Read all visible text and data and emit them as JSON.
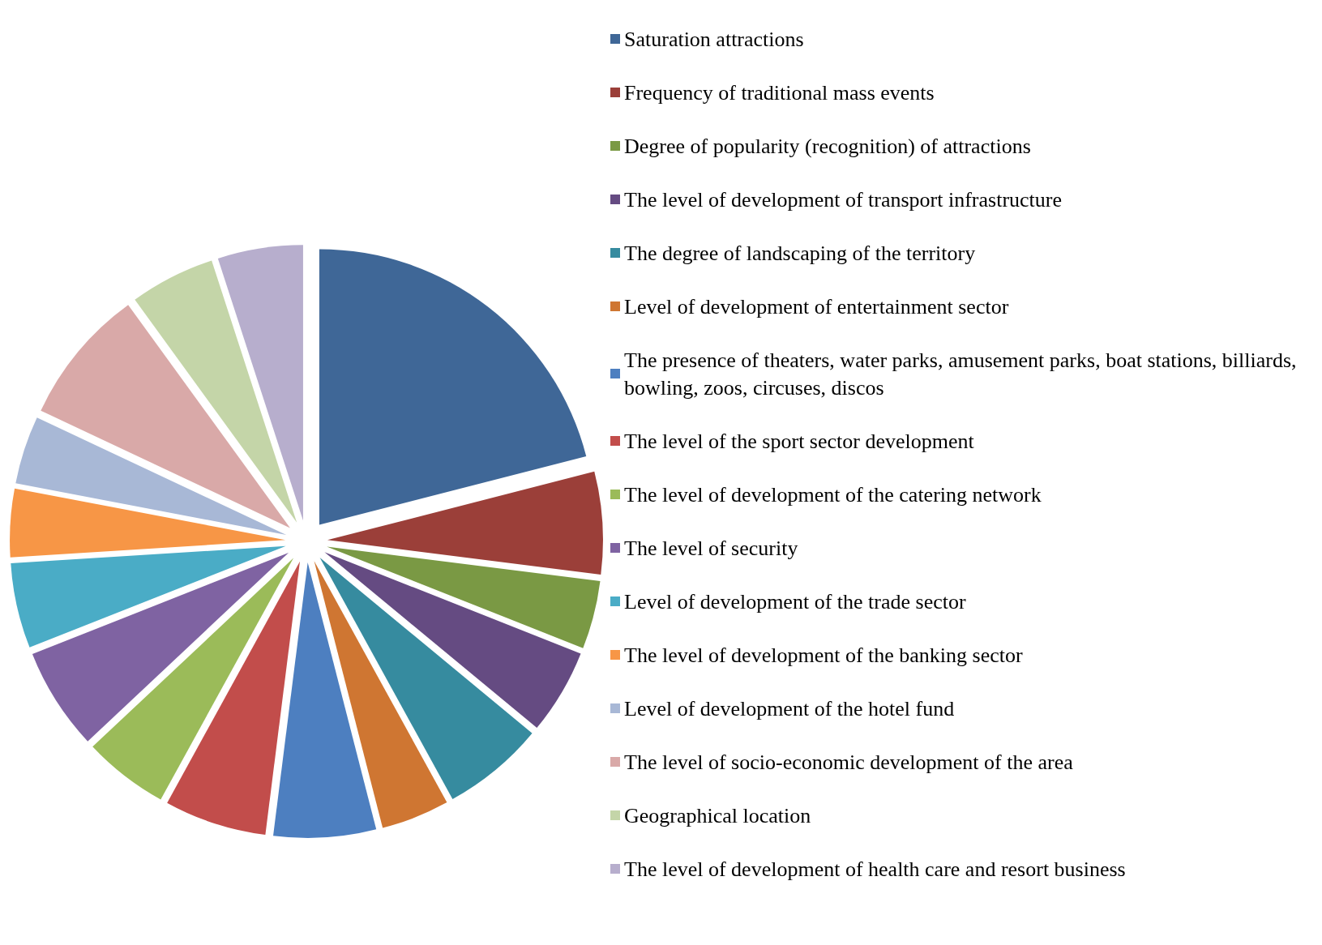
{
  "chart_data": {
    "type": "pie",
    "categories": [
      "Saturation attractions",
      "Frequency of traditional mass events",
      "Degree of popularity (recognition) of attractions",
      "The level of development of transport infrastructure",
      "The degree of landscaping of the territory",
      "Level of development of entertainment sector",
      "The presence of theaters, water parks, amusement parks, boat stations, billiards, bowling, zoos, circuses, discos",
      "The level of the sport sector development",
      "The level of development of the catering network",
      "The level of security",
      "Level of development of the trade sector",
      "The level of development of the banking sector",
      "Level of development of the hotel fund",
      "The level of socio-economic development of the area",
      "Geographical location",
      "The level of development of health care and resort business"
    ],
    "values": [
      21,
      6,
      4,
      5,
      6,
      4,
      6,
      6,
      5,
      6,
      5,
      4,
      4,
      8,
      5,
      5
    ],
    "colors": [
      "#3f6797",
      "#9b3f39",
      "#7a9944",
      "#654b82",
      "#368b9f",
      "#cf7632",
      "#4d7fc0",
      "#c24d4b",
      "#9bbb59",
      "#7f63a2",
      "#4aacc6",
      "#f79646",
      "#a8b8d6",
      "#d9a9a8",
      "#c4d5a8",
      "#b7aecd"
    ],
    "legend": "right"
  }
}
